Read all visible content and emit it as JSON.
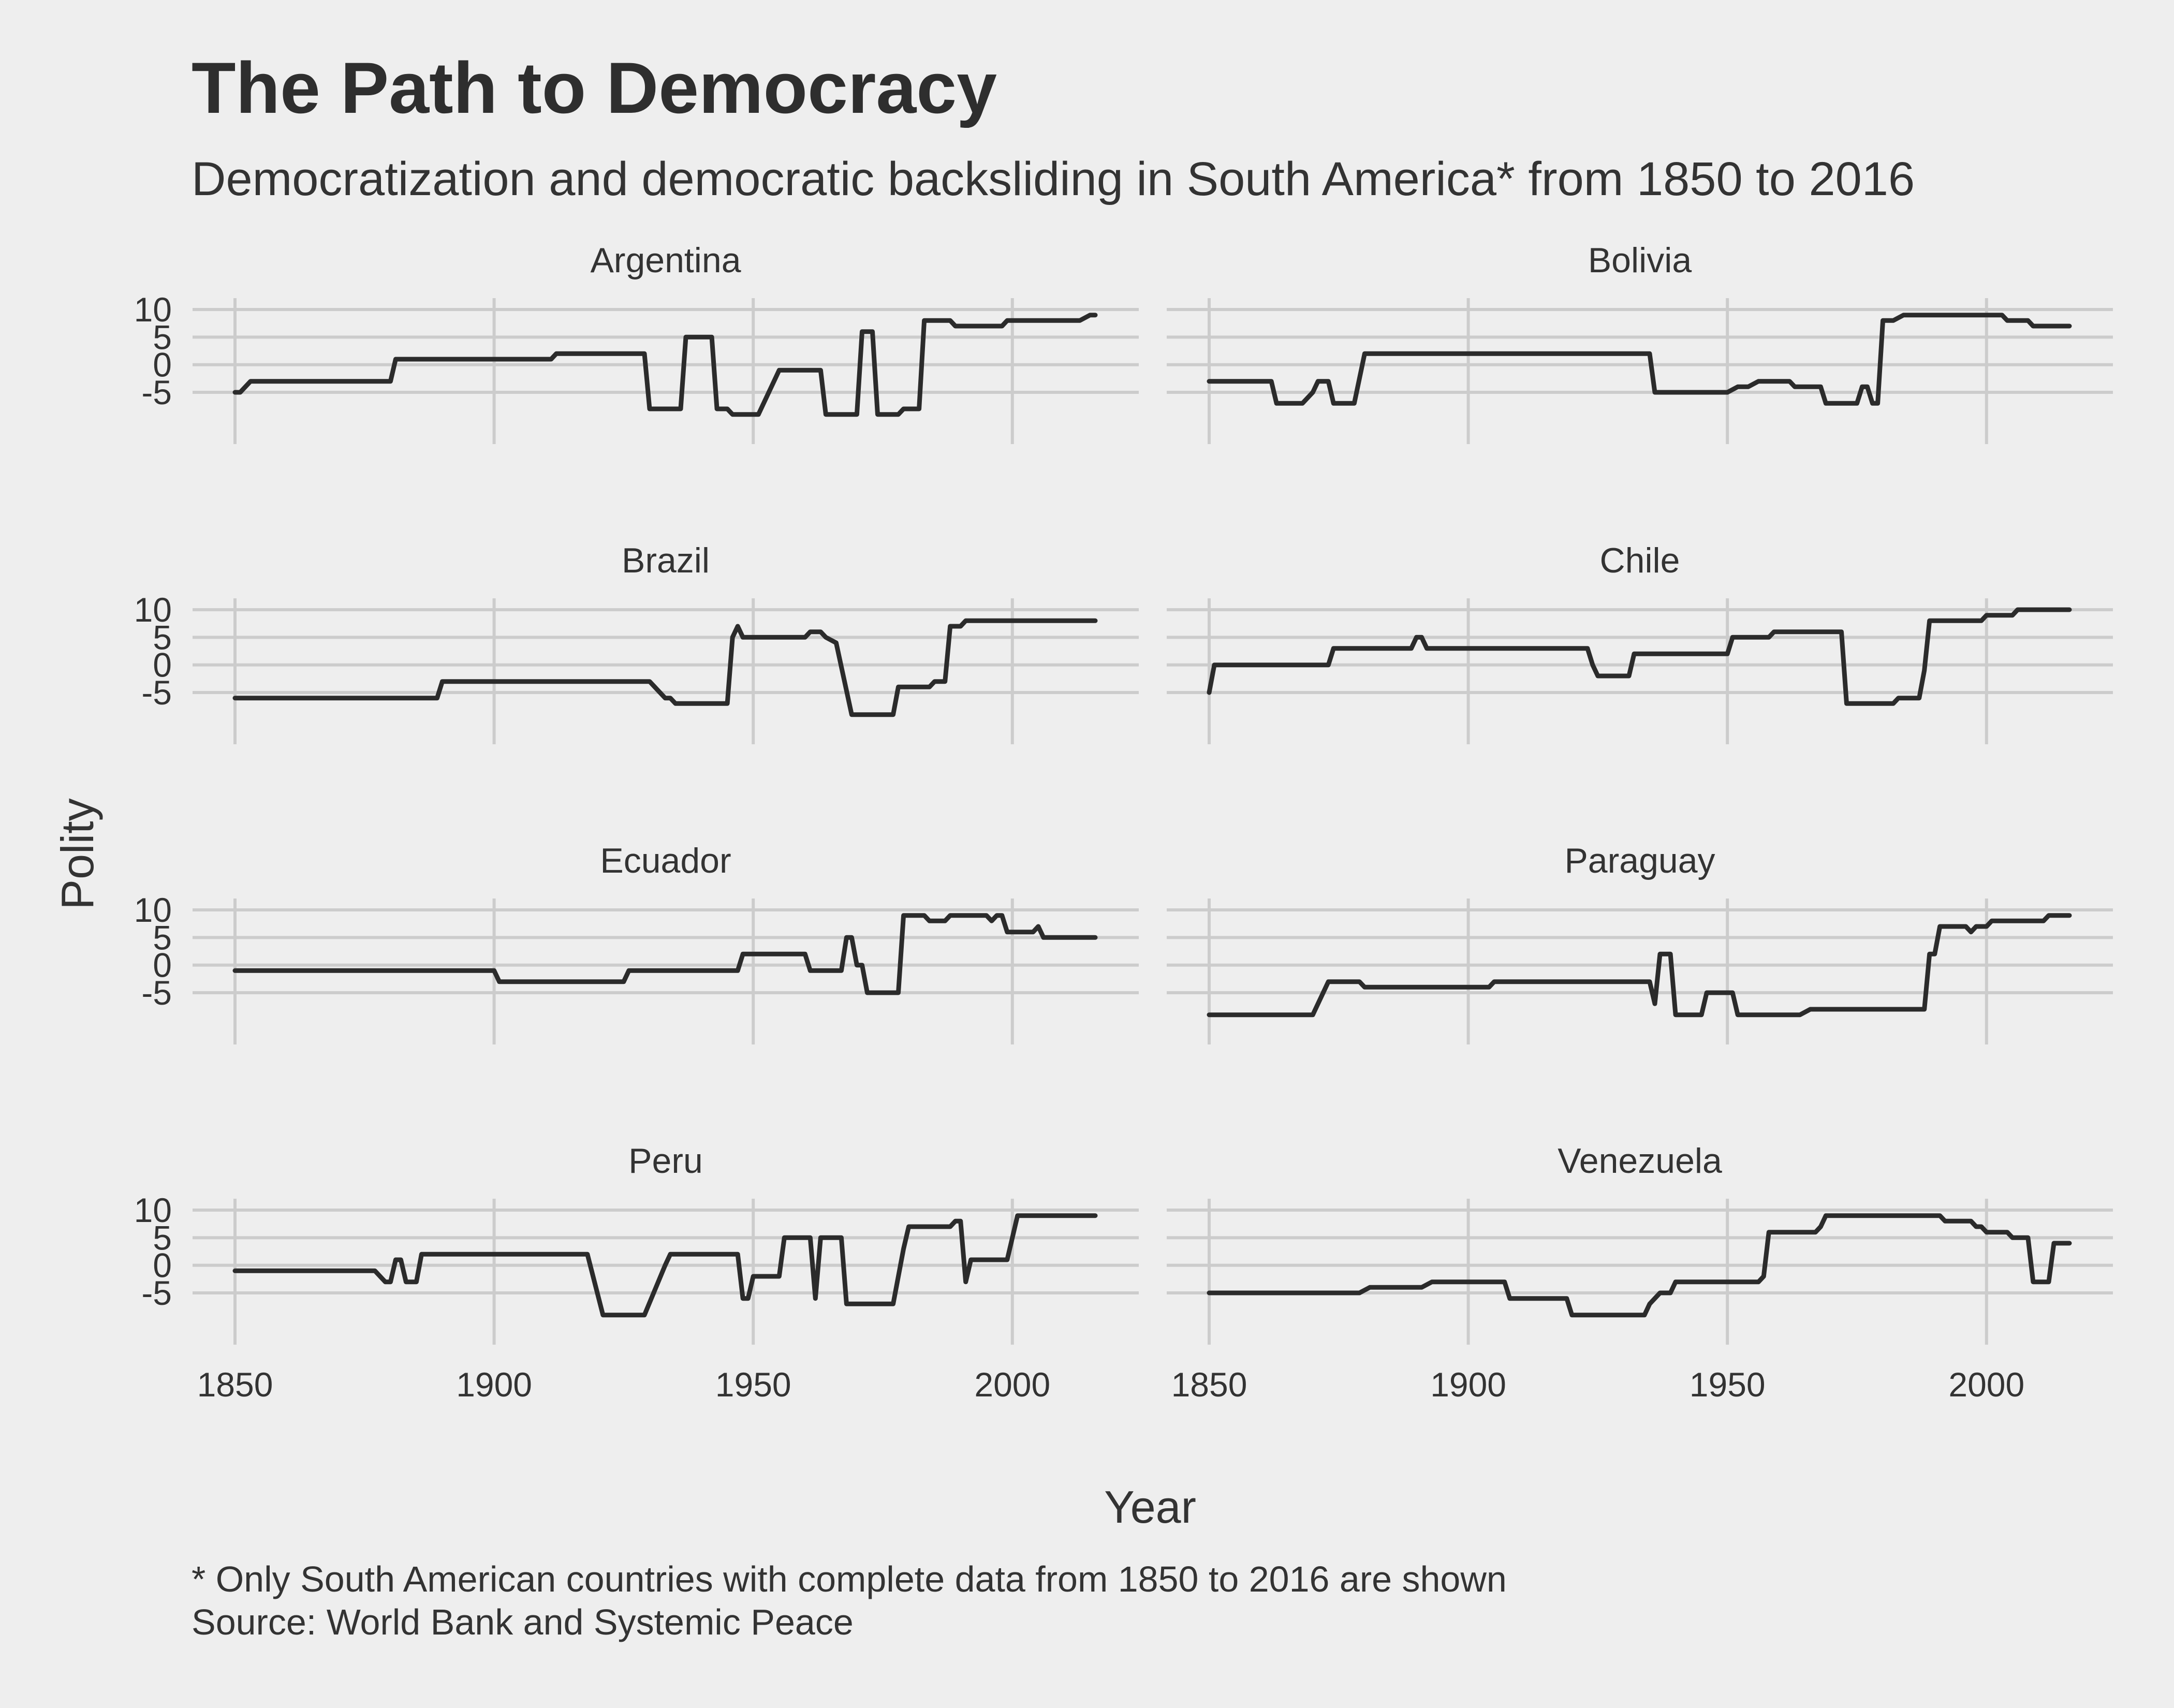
{
  "chart_data": {
    "type": "line",
    "title": "The Path to Democracy",
    "subtitle": "Democratization and democratic backsliding in South America* from 1850 to 2016",
    "xlabel": "Year",
    "ylabel": "Polity",
    "xlim": [
      1850,
      2016
    ],
    "ylim": [
      -10,
      10
    ],
    "x_ticks": [
      "1850",
      "1900",
      "1950",
      "2000"
    ],
    "y_ticks": [
      "10",
      "5",
      "0",
      "-5"
    ],
    "grid": true,
    "caption": [
      "* Only South American countries with complete data from 1850 to 2016 are shown",
      "Source: World Bank and Systemic Peace"
    ],
    "colors": {
      "background": "#eeeeee",
      "grid": "#cccccc",
      "line": "#2b2b2b",
      "text": "#333333"
    },
    "series": [
      {
        "name": "Argentina",
        "points": [
          [
            1850,
            -5
          ],
          [
            1851,
            -5
          ],
          [
            1853,
            -3
          ],
          [
            1880,
            -3
          ],
          [
            1881,
            1
          ],
          [
            1911,
            1
          ],
          [
            1912,
            2
          ],
          [
            1929,
            2
          ],
          [
            1930,
            -8
          ],
          [
            1936,
            -8
          ],
          [
            1937,
            5
          ],
          [
            1942,
            5
          ],
          [
            1943,
            -8
          ],
          [
            1945,
            -8
          ],
          [
            1946,
            -9
          ],
          [
            1951,
            -9
          ],
          [
            1955,
            -1
          ],
          [
            1963,
            -1
          ],
          [
            1964,
            -9
          ],
          [
            1970,
            -9
          ],
          [
            1971,
            6
          ],
          [
            1973,
            6
          ],
          [
            1974,
            -9
          ],
          [
            1978,
            -9
          ],
          [
            1979,
            -8
          ],
          [
            1982,
            -8
          ],
          [
            1983,
            8
          ],
          [
            1988,
            8
          ],
          [
            1989,
            7
          ],
          [
            1998,
            7
          ],
          [
            1999,
            8
          ],
          [
            2013,
            8
          ],
          [
            2015,
            9
          ],
          [
            2016,
            9
          ]
        ]
      },
      {
        "name": "Bolivia",
        "points": [
          [
            1850,
            -3
          ],
          [
            1862,
            -3
          ],
          [
            1863,
            -7
          ],
          [
            1868,
            -7
          ],
          [
            1870,
            -5
          ],
          [
            1871,
            -3
          ],
          [
            1873,
            -3
          ],
          [
            1874,
            -7
          ],
          [
            1878,
            -7
          ],
          [
            1880,
            2
          ],
          [
            1935,
            2
          ],
          [
            1936,
            -5
          ],
          [
            1950,
            -5
          ],
          [
            1952,
            -4
          ],
          [
            1954,
            -4
          ],
          [
            1956,
            -3
          ],
          [
            1962,
            -3
          ],
          [
            1963,
            -4
          ],
          [
            1968,
            -4
          ],
          [
            1969,
            -7
          ],
          [
            1975,
            -7
          ],
          [
            1976,
            -4
          ],
          [
            1977,
            -4
          ],
          [
            1978,
            -7
          ],
          [
            1979,
            -7
          ],
          [
            1980,
            8
          ],
          [
            1982,
            8
          ],
          [
            1984,
            9
          ],
          [
            2003,
            9
          ],
          [
            2004,
            8
          ],
          [
            2008,
            8
          ],
          [
            2009,
            7
          ],
          [
            2016,
            7
          ]
        ]
      },
      {
        "name": "Brazil",
        "points": [
          [
            1850,
            -6
          ],
          [
            1889,
            -6
          ],
          [
            1890,
            -3
          ],
          [
            1930,
            -3
          ],
          [
            1933,
            -6
          ],
          [
            1934,
            -6
          ],
          [
            1935,
            -7
          ],
          [
            1945,
            -7
          ],
          [
            1946,
            5
          ],
          [
            1947,
            7
          ],
          [
            1948,
            5
          ],
          [
            1960,
            5
          ],
          [
            1961,
            6
          ],
          [
            1963,
            6
          ],
          [
            1964,
            5
          ],
          [
            1966,
            4
          ],
          [
            1969,
            -9
          ],
          [
            1977,
            -9
          ],
          [
            1978,
            -4
          ],
          [
            1984,
            -4
          ],
          [
            1985,
            -3
          ],
          [
            1987,
            -3
          ],
          [
            1988,
            7
          ],
          [
            1990,
            7
          ],
          [
            1991,
            8
          ],
          [
            2016,
            8
          ]
        ]
      },
      {
        "name": "Chile",
        "points": [
          [
            1850,
            -5
          ],
          [
            1851,
            0
          ],
          [
            1873,
            0
          ],
          [
            1874,
            3
          ],
          [
            1889,
            3
          ],
          [
            1890,
            5
          ],
          [
            1891,
            5
          ],
          [
            1892,
            3
          ],
          [
            1923,
            3
          ],
          [
            1924,
            0
          ],
          [
            1925,
            -2
          ],
          [
            1931,
            -2
          ],
          [
            1932,
            2
          ],
          [
            1950,
            2
          ],
          [
            1951,
            5
          ],
          [
            1958,
            5
          ],
          [
            1959,
            6
          ],
          [
            1967,
            6
          ],
          [
            1968,
            6
          ],
          [
            1972,
            6
          ],
          [
            1973,
            -7
          ],
          [
            1982,
            -7
          ],
          [
            1983,
            -6
          ],
          [
            1987,
            -6
          ],
          [
            1988,
            -1
          ],
          [
            1989,
            8
          ],
          [
            1999,
            8
          ],
          [
            2000,
            9
          ],
          [
            2005,
            9
          ],
          [
            2006,
            10
          ],
          [
            2016,
            10
          ]
        ]
      },
      {
        "name": "Ecuador",
        "points": [
          [
            1850,
            -1
          ],
          [
            1900,
            -1
          ],
          [
            1901,
            -3
          ],
          [
            1925,
            -3
          ],
          [
            1926,
            -1
          ],
          [
            1947,
            -1
          ],
          [
            1948,
            2
          ],
          [
            1960,
            2
          ],
          [
            1961,
            -1
          ],
          [
            1967,
            -1
          ],
          [
            1968,
            5
          ],
          [
            1969,
            5
          ],
          [
            1970,
            0
          ],
          [
            1971,
            0
          ],
          [
            1972,
            -5
          ],
          [
            1978,
            -5
          ],
          [
            1979,
            9
          ],
          [
            1983,
            9
          ],
          [
            1984,
            8
          ],
          [
            1987,
            8
          ],
          [
            1988,
            9
          ],
          [
            1995,
            9
          ],
          [
            1996,
            8
          ],
          [
            1997,
            9
          ],
          [
            1998,
            9
          ],
          [
            1999,
            6
          ],
          [
            2004,
            6
          ],
          [
            2005,
            7
          ],
          [
            2006,
            5
          ],
          [
            2016,
            5
          ]
        ]
      },
      {
        "name": "Paraguay",
        "points": [
          [
            1850,
            -9
          ],
          [
            1870,
            -9
          ],
          [
            1873,
            -3
          ],
          [
            1879,
            -3
          ],
          [
            1880,
            -4
          ],
          [
            1904,
            -4
          ],
          [
            1905,
            -3
          ],
          [
            1935,
            -3
          ],
          [
            1936,
            -7
          ],
          [
            1937,
            2
          ],
          [
            1939,
            2
          ],
          [
            1940,
            -9
          ],
          [
            1945,
            -9
          ],
          [
            1946,
            -5
          ],
          [
            1951,
            -5
          ],
          [
            1952,
            -9
          ],
          [
            1964,
            -9
          ],
          [
            1966,
            -8
          ],
          [
            1988,
            -8
          ],
          [
            1989,
            2
          ],
          [
            1990,
            2
          ],
          [
            1991,
            7
          ],
          [
            1996,
            7
          ],
          [
            1997,
            6
          ],
          [
            1998,
            7
          ],
          [
            2000,
            7
          ],
          [
            2001,
            8
          ],
          [
            2011,
            8
          ],
          [
            2012,
            9
          ],
          [
            2016,
            9
          ]
        ]
      },
      {
        "name": "Peru",
        "points": [
          [
            1850,
            -1
          ],
          [
            1877,
            -1
          ],
          [
            1879,
            -3
          ],
          [
            1880,
            -3
          ],
          [
            1881,
            1
          ],
          [
            1882,
            1
          ],
          [
            1883,
            -3
          ],
          [
            1885,
            -3
          ],
          [
            1886,
            2
          ],
          [
            1918,
            2
          ],
          [
            1921,
            -9
          ],
          [
            1929,
            -9
          ],
          [
            1933,
            0
          ],
          [
            1934,
            2
          ],
          [
            1947,
            2
          ],
          [
            1948,
            -6
          ],
          [
            1949,
            -6
          ],
          [
            1950,
            -2
          ],
          [
            1955,
            -2
          ],
          [
            1956,
            5
          ],
          [
            1961,
            5
          ],
          [
            1962,
            -6
          ],
          [
            1963,
            5
          ],
          [
            1967,
            5
          ],
          [
            1968,
            -7
          ],
          [
            1977,
            -7
          ],
          [
            1979,
            3
          ],
          [
            1980,
            7
          ],
          [
            1988,
            7
          ],
          [
            1989,
            8
          ],
          [
            1990,
            8
          ],
          [
            1991,
            -3
          ],
          [
            1992,
            1
          ],
          [
            1999,
            1
          ],
          [
            2001,
            9
          ],
          [
            2016,
            9
          ]
        ]
      },
      {
        "name": "Venezuela",
        "points": [
          [
            1850,
            -5
          ],
          [
            1879,
            -5
          ],
          [
            1881,
            -4
          ],
          [
            1891,
            -4
          ],
          [
            1893,
            -3
          ],
          [
            1907,
            -3
          ],
          [
            1908,
            -6
          ],
          [
            1919,
            -6
          ],
          [
            1920,
            -9
          ],
          [
            1934,
            -9
          ],
          [
            1935,
            -7
          ],
          [
            1937,
            -5
          ],
          [
            1939,
            -5
          ],
          [
            1940,
            -3
          ],
          [
            1956,
            -3
          ],
          [
            1957,
            -2
          ],
          [
            1958,
            6
          ],
          [
            1967,
            6
          ],
          [
            1968,
            7
          ],
          [
            1969,
            9
          ],
          [
            1991,
            9
          ],
          [
            1992,
            8
          ],
          [
            1997,
            8
          ],
          [
            1998,
            7
          ],
          [
            1999,
            7
          ],
          [
            2000,
            6
          ],
          [
            2004,
            6
          ],
          [
            2005,
            5
          ],
          [
            2008,
            5
          ],
          [
            2009,
            -3
          ],
          [
            2012,
            -3
          ],
          [
            2013,
            4
          ],
          [
            2016,
            4
          ]
        ]
      }
    ]
  }
}
